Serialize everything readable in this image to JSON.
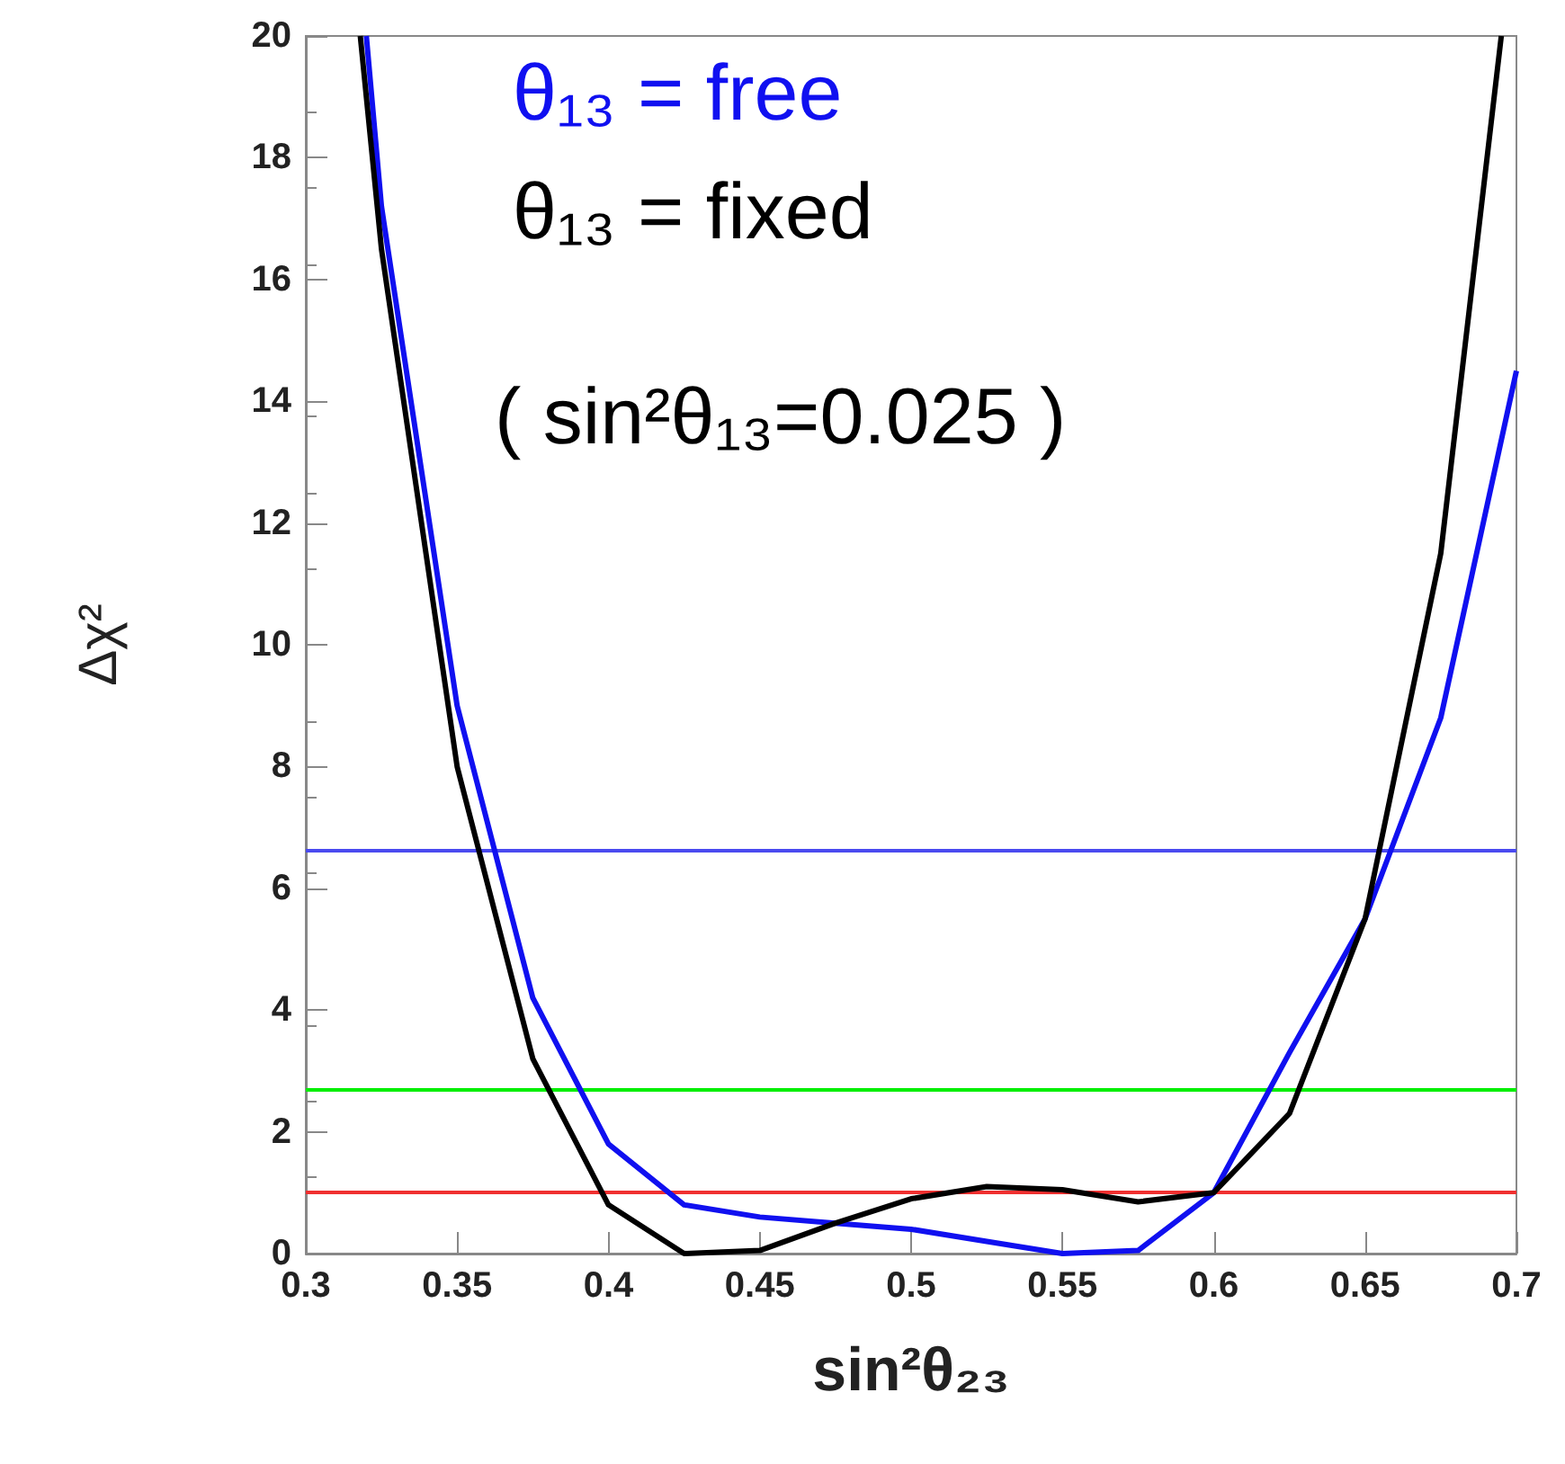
{
  "chart_data": {
    "type": "line",
    "xlabel": "sin²θ₂₃",
    "ylabel": "Δχ²",
    "xlim": [
      0.3,
      0.7
    ],
    "xticks": [
      0.3,
      0.35,
      0.4,
      0.45,
      0.5,
      0.55,
      0.6,
      0.65,
      0.7
    ],
    "ylim": [
      0,
      20
    ],
    "yticks": [
      0,
      2,
      4,
      6,
      8,
      10,
      12,
      14,
      16,
      18,
      20
    ],
    "grid": false,
    "legend": "top",
    "marker": "none",
    "line_style": "solid",
    "series": [
      {
        "name": "θ₁₃ = free",
        "color": "#1010f0",
        "x": [
          0.32,
          0.325,
          0.35,
          0.375,
          0.4,
          0.425,
          0.45,
          0.475,
          0.5,
          0.525,
          0.55,
          0.575,
          0.6,
          0.625,
          0.65,
          0.675,
          0.7
        ],
        "values": [
          20,
          17.2,
          9.0,
          4.2,
          1.8,
          0.8,
          0.6,
          0.5,
          0.4,
          0.2,
          0,
          0.05,
          1.0,
          3.3,
          5.5,
          8.8,
          14.5
        ]
      },
      {
        "name": "θ₁₃ = fixed",
        "color": "#000000",
        "x": [
          0.318,
          0.325,
          0.35,
          0.375,
          0.4,
          0.425,
          0.45,
          0.475,
          0.5,
          0.525,
          0.55,
          0.575,
          0.6,
          0.625,
          0.65,
          0.675,
          0.695
        ],
        "values": [
          20,
          16.5,
          8.0,
          3.2,
          0.8,
          0,
          0.05,
          0.5,
          0.9,
          1.1,
          1.05,
          0.85,
          1.0,
          2.3,
          5.5,
          11.5,
          20
        ]
      }
    ],
    "ref_lines": [
      {
        "axis": "y",
        "value": 6.63,
        "color": "#4a4af0"
      },
      {
        "axis": "y",
        "value": 2.71,
        "color": "#00ee00"
      },
      {
        "axis": "y",
        "value": 1.0,
        "color": "#f03030"
      }
    ],
    "annotations": [
      "( sin²θ₁₃=0.025 )"
    ]
  }
}
